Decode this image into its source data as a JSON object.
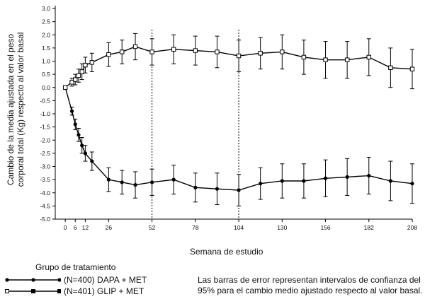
{
  "chart_data": {
    "type": "line",
    "ylabel_line1": "Cambio de la media ajustada en el peso",
    "ylabel_line2": "corporal total (Kg) respecto al valor basal",
    "xlabel": "Semana de estudio",
    "ylim": [
      -5.0,
      3.0
    ],
    "xlim": [
      -6,
      208
    ],
    "yticks": [
      "3.0",
      "2.5",
      "2.0",
      "1.5",
      "1.0",
      "0.5",
      "0.0",
      "-0.5",
      "-1.0",
      "-1.5",
      "-2.0",
      "-2.5",
      "-3.0",
      "-3.5",
      "-4.0",
      "-4.5",
      "-5.0"
    ],
    "xticks": [
      0,
      6,
      12,
      26,
      52,
      78,
      104,
      130,
      156,
      182,
      208
    ],
    "reference_lines_x": [
      52,
      104
    ],
    "legend_title": "Grupo de tratamiento",
    "series": [
      {
        "name": "(N=400) DAPA + MET",
        "marker": "filled",
        "x": [
          0,
          4,
          6,
          8,
          10,
          12,
          16,
          26,
          34,
          42,
          52,
          65,
          78,
          91,
          104,
          117,
          130,
          143,
          156,
          169,
          182,
          195,
          208
        ],
        "y": [
          0.0,
          -0.9,
          -1.4,
          -1.8,
          -2.2,
          -2.5,
          -2.8,
          -3.5,
          -3.6,
          -3.7,
          -3.6,
          -3.5,
          -3.8,
          -3.85,
          -3.9,
          -3.65,
          -3.55,
          -3.55,
          -3.45,
          -3.4,
          -3.35,
          -3.55,
          -3.65
        ],
        "err": [
          0.05,
          0.15,
          0.2,
          0.25,
          0.3,
          0.3,
          0.35,
          0.45,
          0.45,
          0.5,
          0.5,
          0.55,
          0.55,
          0.6,
          0.6,
          0.6,
          0.65,
          0.65,
          0.7,
          0.7,
          0.7,
          0.75,
          0.75
        ]
      },
      {
        "name": "(N=401) GLIP + MET",
        "marker": "open",
        "x": [
          0,
          4,
          6,
          8,
          10,
          12,
          16,
          26,
          34,
          42,
          52,
          65,
          78,
          91,
          104,
          117,
          130,
          143,
          156,
          169,
          182,
          195,
          208
        ],
        "y": [
          0.0,
          0.2,
          0.3,
          0.45,
          0.6,
          0.85,
          0.95,
          1.25,
          1.35,
          1.55,
          1.35,
          1.45,
          1.4,
          1.35,
          1.2,
          1.3,
          1.35,
          1.15,
          1.05,
          1.05,
          1.15,
          0.75,
          0.7
        ]
      }
    ]
  },
  "note_line1": "Las barras de error representan intervalos de confianza del",
  "note_line2": "95% para el cambio medio ajustado respecto al valor basal."
}
